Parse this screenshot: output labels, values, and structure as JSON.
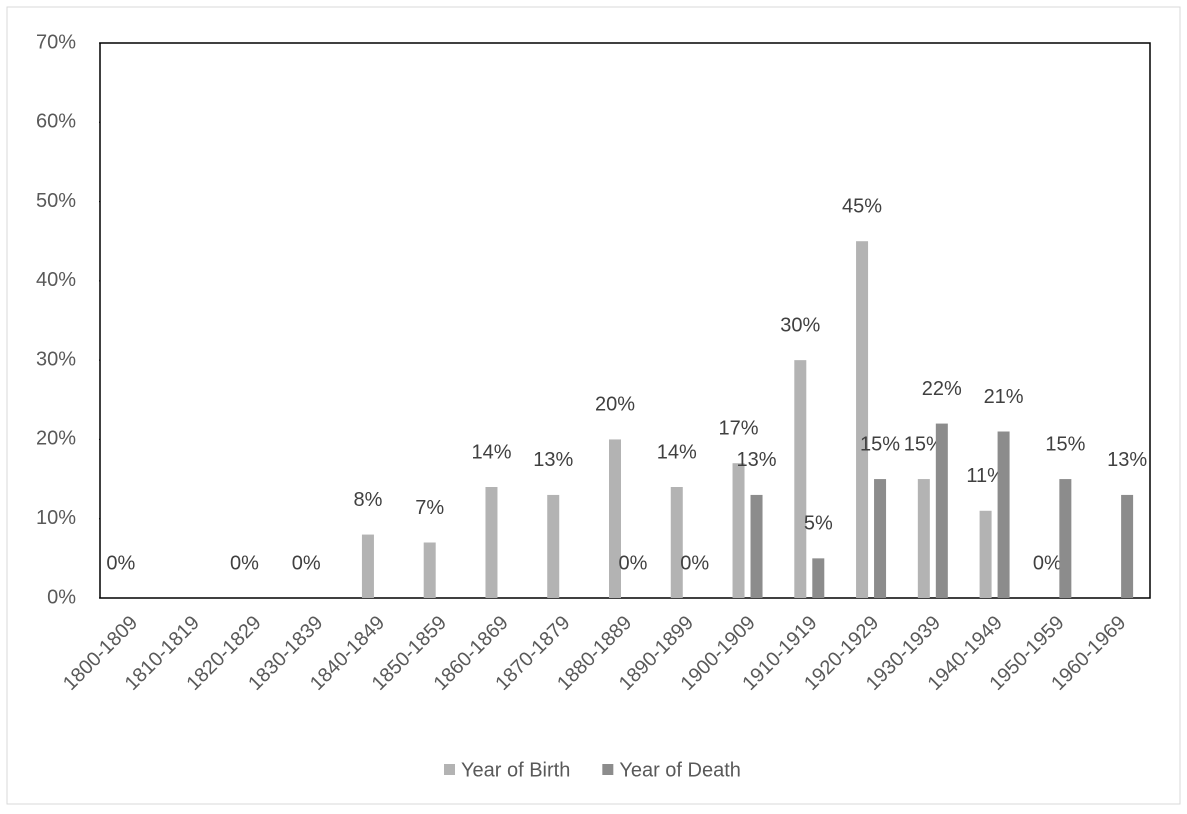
{
  "chart_data": {
    "type": "bar",
    "categories": [
      "1800-1809",
      "1810-1819",
      "1820-1829",
      "1830-1839",
      "1840-1849",
      "1850-1859",
      "1860-1869",
      "1870-1879",
      "1880-1889",
      "1890-1899",
      "1900-1909",
      "1910-1919",
      "1920-1929",
      "1930-1939",
      "1940-1949",
      "1950-1959",
      "1960-1969"
    ],
    "series": [
      {
        "name": "Year of Birth",
        "color": "#b3b3b3",
        "values": [
          0,
          null,
          0,
          0,
          8,
          7,
          14,
          13,
          20,
          14,
          17,
          30,
          45,
          15,
          11,
          0,
          null
        ],
        "value_labels": [
          "0%",
          null,
          "0%",
          "0%",
          "8%",
          "7%",
          "14%",
          "13%",
          "20%",
          "14%",
          "17%",
          "30%",
          "45%",
          "15%",
          "11%",
          "0%",
          null
        ]
      },
      {
        "name": "Year of Death",
        "color": "#8c8c8c",
        "values": [
          null,
          null,
          null,
          null,
          null,
          null,
          null,
          null,
          0,
          0,
          13,
          5,
          15,
          22,
          21,
          15,
          13
        ],
        "value_labels": [
          null,
          null,
          null,
          null,
          null,
          null,
          null,
          null,
          "0%",
          "0%",
          "13%",
          "5%",
          "15%",
          "22%",
          "21%",
          "15%",
          "13%"
        ]
      }
    ],
    "ylim": [
      0,
      70
    ],
    "yticks": [
      {
        "value": 0,
        "label": "0%"
      },
      {
        "value": 10,
        "label": "10%"
      },
      {
        "value": 20,
        "label": "20%"
      },
      {
        "value": 30,
        "label": "30%"
      },
      {
        "value": 40,
        "label": "40%"
      },
      {
        "value": 50,
        "label": "50%"
      },
      {
        "value": 60,
        "label": "60%"
      },
      {
        "value": 70,
        "label": "70%"
      }
    ],
    "legend": "bottom"
  }
}
